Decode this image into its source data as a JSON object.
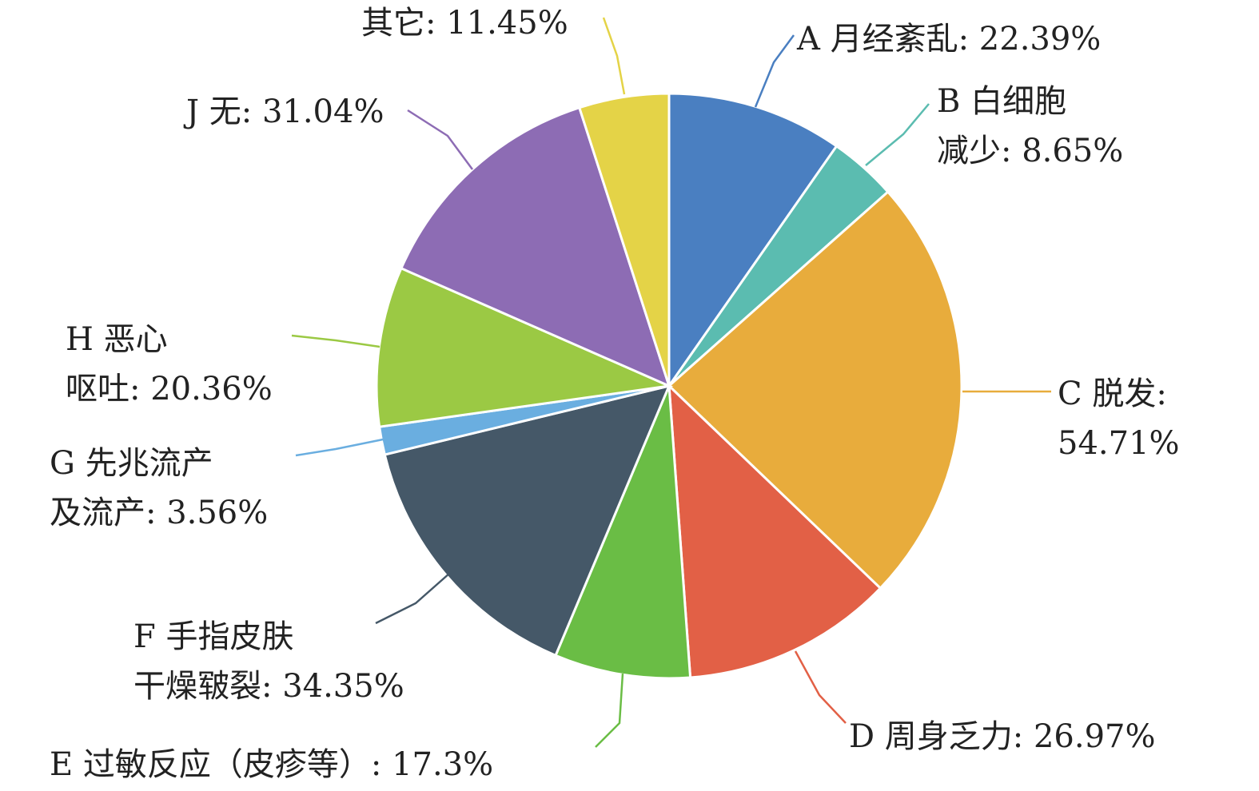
{
  "chart_data": {
    "type": "pie",
    "series": [
      {
        "categories": [
          "A 月经紊乱",
          "B 白细胞减少",
          "C 脱发",
          "D 周身乏力",
          "E 过敏反应（皮疹等）",
          "F 手指皮肤干燥皲裂",
          "G 先兆流产及流产",
          "H 恶心呕吐",
          "J 无",
          "其它"
        ],
        "values": [
          22.39,
          8.65,
          54.71,
          26.97,
          17.3,
          34.35,
          3.56,
          20.36,
          31.04,
          11.45
        ]
      }
    ],
    "colors": [
      "#4a7fc1",
      "#5bbcb0",
      "#e8ac3c",
      "#e26046",
      "#6abd45",
      "#455868",
      "#6aaee0",
      "#9bc944",
      "#8d6cb4",
      "#e4d347"
    ],
    "labels": [
      {
        "lines": [
          "A 月经紊乱: 22.39%"
        ]
      },
      {
        "lines": [
          "B 白细胞",
          "减少: 8.65%"
        ]
      },
      {
        "lines": [
          "C 脱发:",
          "54.71%"
        ]
      },
      {
        "lines": [
          "D 周身乏力: 26.97%"
        ]
      },
      {
        "lines": [
          "E 过敏反应（皮疹等）: 17.3%"
        ]
      },
      {
        "lines": [
          "F 手指皮肤",
          "干燥皲裂: 34.35%"
        ]
      },
      {
        "lines": [
          "G 先兆流产",
          "及流产: 3.56%"
        ]
      },
      {
        "lines": [
          "H 恶心",
          "呕吐: 20.36%"
        ]
      },
      {
        "lines": [
          "J 无: 31.04%"
        ]
      },
      {
        "lines": [
          "其它: 11.45%"
        ]
      }
    ]
  }
}
